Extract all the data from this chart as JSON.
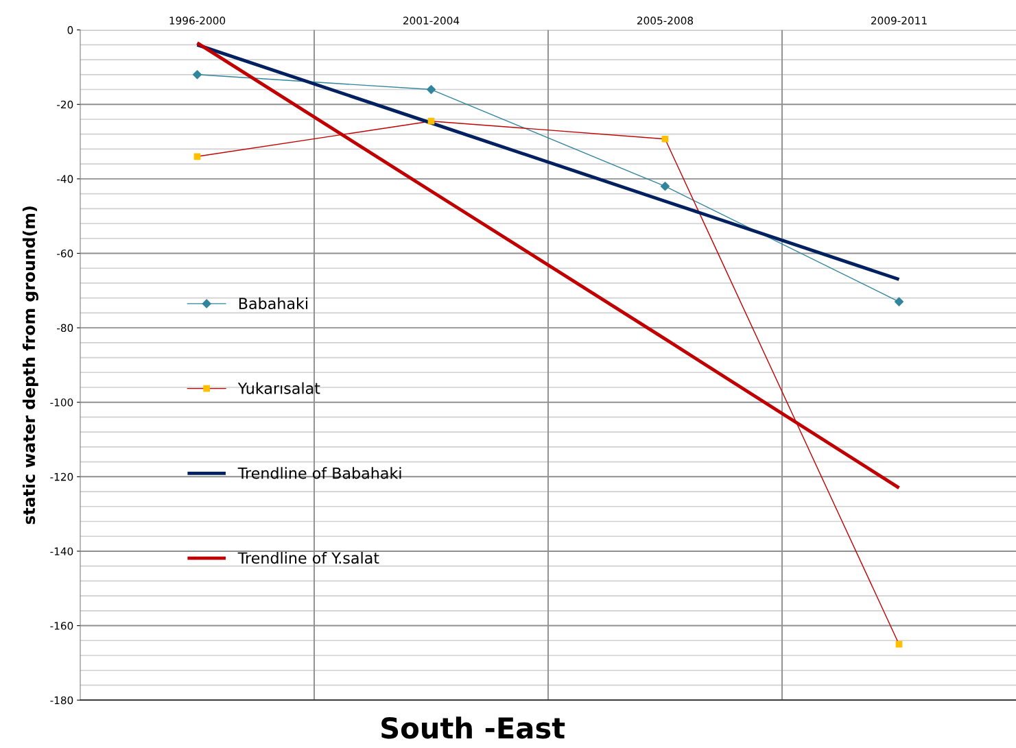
{
  "chart_data": {
    "type": "line",
    "title": "South -East",
    "ylabel": "static water depth from ground(m)",
    "categories": [
      "1996-2000",
      "2001-2004",
      "2005-2008",
      "2009-2011"
    ],
    "series": [
      {
        "name": "Babahaki",
        "color": "#31859c",
        "values": [
          -12,
          -16,
          -42,
          -73
        ],
        "marker": "diamond"
      },
      {
        "name": "Yukarısalat",
        "color": "#c00000",
        "values": [
          -34,
          -24.5,
          -29.3,
          -165
        ],
        "marker": "square",
        "colors": [
          "#ffc000",
          "#ffc000",
          "#ffc000",
          "#ffc000"
        ]
      },
      {
        "name": "Trendline of Babahaki",
        "color": "#002060",
        "values": [
          -4,
          -25,
          -46,
          -67
        ],
        "marker": "none"
      },
      {
        "name": "Trendline of Y.salat",
        "color": "#c00000",
        "values": [
          -3.5,
          -43.3,
          -83,
          -123
        ],
        "marker": "none"
      }
    ],
    "ylim": [
      -180,
      0
    ],
    "yticks": [
      0,
      -20,
      -40,
      -60,
      -80,
      -100,
      -120,
      -140,
      -160,
      -180
    ],
    "grid": true,
    "legend": "left",
    "line_style": "solid"
  }
}
